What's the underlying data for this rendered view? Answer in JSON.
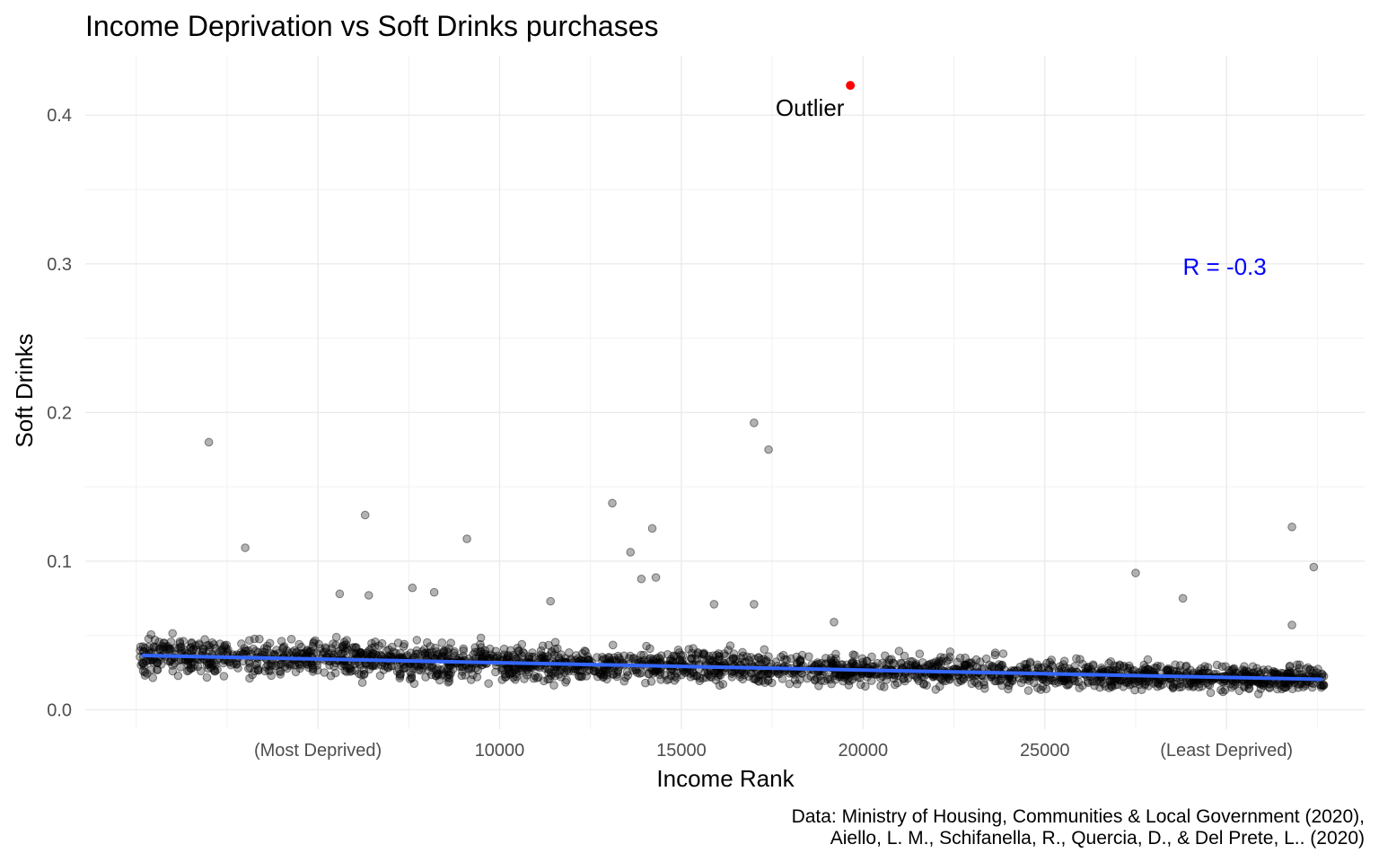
{
  "chart_data": {
    "type": "scatter",
    "title": "Income Deprivation vs Soft Drinks purchases",
    "xlabel": "Income Rank",
    "ylabel": "Soft Drinks",
    "xlim": [
      -1400,
      33800
    ],
    "ylim": [
      -0.013,
      0.44
    ],
    "x_ticks": [
      {
        "value": 5000,
        "label": "(Most Deprived)"
      },
      {
        "value": 10000,
        "label": "10000"
      },
      {
        "value": 15000,
        "label": "15000"
      },
      {
        "value": 20000,
        "label": "20000"
      },
      {
        "value": 25000,
        "label": "25000"
      },
      {
        "value": 30000,
        "label": "(Least Deprived)"
      }
    ],
    "y_ticks": [
      {
        "value": 0.0,
        "label": "0.0"
      },
      {
        "value": 0.1,
        "label": "0.1"
      },
      {
        "value": 0.2,
        "label": "0.2"
      },
      {
        "value": 0.3,
        "label": "0.3"
      },
      {
        "value": 0.4,
        "label": "0.4"
      }
    ],
    "x_minor_grid": [
      0,
      2500,
      7500,
      12500,
      17500,
      22500,
      27500,
      32500
    ],
    "y_minor_grid": [
      0.05,
      0.15,
      0.25,
      0.35
    ],
    "grid": true,
    "legend": "none",
    "trend_line": {
      "color": "#3366ff",
      "x": [
        200,
        32600
      ],
      "y": [
        0.0365,
        0.0205
      ]
    },
    "outlier": {
      "x": 19650,
      "y": 0.42,
      "color": "#ff0000",
      "label": "Outlier"
    },
    "correlation_label": {
      "text": "R = -0.3",
      "x": 29950,
      "y": 0.298,
      "color": "#0000ff"
    },
    "notable_points": [
      {
        "x": 2000,
        "y": 0.18
      },
      {
        "x": 17000,
        "y": 0.193
      },
      {
        "x": 17400,
        "y": 0.175
      },
      {
        "x": 13100,
        "y": 0.139
      },
      {
        "x": 6300,
        "y": 0.131
      },
      {
        "x": 14200,
        "y": 0.122
      },
      {
        "x": 31800,
        "y": 0.123
      },
      {
        "x": 9100,
        "y": 0.115
      },
      {
        "x": 3000,
        "y": 0.109
      },
      {
        "x": 13600,
        "y": 0.106
      },
      {
        "x": 32400,
        "y": 0.096
      },
      {
        "x": 27500,
        "y": 0.092
      },
      {
        "x": 14300,
        "y": 0.089
      },
      {
        "x": 13900,
        "y": 0.088
      },
      {
        "x": 7600,
        "y": 0.082
      },
      {
        "x": 8200,
        "y": 0.079
      },
      {
        "x": 5600,
        "y": 0.078
      },
      {
        "x": 6400,
        "y": 0.077
      },
      {
        "x": 28800,
        "y": 0.075
      },
      {
        "x": 11400,
        "y": 0.073
      },
      {
        "x": 15900,
        "y": 0.071
      },
      {
        "x": 17000,
        "y": 0.071
      },
      {
        "x": 31800,
        "y": 0.057
      },
      {
        "x": 19200,
        "y": 0.059
      }
    ],
    "bulk_cloud": {
      "x_range": [
        100,
        32700
      ],
      "center_start": 0.0365,
      "center_end": 0.0205,
      "spread": 0.009,
      "count": 2400
    }
  },
  "caption": {
    "line1": "Data: Ministry of Housing, Communities & Local Government (2020),",
    "line2": "Aiello, L. M., Schifanella, R., Quercia, D., & Del Prete, L.. (2020)"
  }
}
